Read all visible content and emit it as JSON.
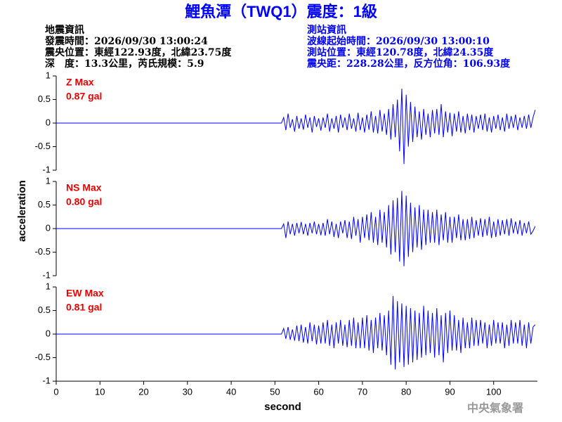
{
  "header": {
    "title": "鯉魚潭（TWQ1）震度：1級",
    "left": [
      "地震資訊",
      "發震時間：2026/09/30 13:00:24",
      "震央位置：東經122.93度，北緯23.75度",
      "深　度：13.3公里，芮氏規模：5.9"
    ],
    "right": [
      "測站資訊",
      "波線起始時間：2026/09/30 13:00:10",
      "測站位置：東經120.78度，北緯24.35度",
      "震央距：228.28公里，反方位角：106.93度"
    ]
  },
  "footer": "中央氣象署",
  "chart_data": [
    {
      "type": "line",
      "annotations": [
        "Z Max",
        "0.87 gal"
      ],
      "xlim": [
        0,
        110
      ],
      "ylim": [
        -1,
        1
      ],
      "yticks": [
        1,
        0.5,
        0,
        -0.5,
        -1
      ],
      "x": [
        0,
        51.5,
        52,
        52.5,
        53,
        53.5,
        54,
        54.5,
        55,
        55.5,
        56,
        56.5,
        57,
        57.5,
        58,
        58.5,
        59,
        59.5,
        60,
        60.5,
        61,
        61.5,
        62,
        62.5,
        63,
        63.5,
        64,
        64.5,
        65,
        65.5,
        66,
        66.5,
        67,
        67.5,
        68,
        68.5,
        69,
        69.5,
        70,
        70.5,
        71,
        71.5,
        72,
        72.5,
        73,
        73.5,
        74,
        74.5,
        75,
        75.5,
        76,
        76.5,
        77,
        77.5,
        78,
        78.5,
        79,
        79.5,
        80,
        80.5,
        81,
        81.5,
        82,
        82.5,
        83,
        83.5,
        84,
        84.5,
        85,
        85.5,
        86,
        86.5,
        87,
        87.5,
        88,
        88.5,
        89,
        89.5,
        90,
        90.5,
        91,
        91.5,
        92,
        92.5,
        93,
        93.5,
        94,
        94.5,
        95,
        95.5,
        96,
        96.5,
        97,
        97.5,
        98,
        98.5,
        99,
        99.5,
        100,
        100.5,
        101,
        101.5,
        102,
        102.5,
        103,
        103.5,
        104,
        104.5,
        105,
        105.5,
        106,
        106.5,
        107,
        107.5,
        108,
        108.5,
        109,
        109.5
      ],
      "series": [
        {
          "color": "#0000ff",
          "values": [
            0,
            0,
            0.12,
            -0.15,
            0.2,
            -0.1,
            0.08,
            -0.18,
            0.15,
            -0.12,
            0.1,
            -0.14,
            0.18,
            -0.1,
            0.12,
            -0.2,
            0.15,
            -0.08,
            0.1,
            -0.16,
            0.12,
            -0.1,
            0.2,
            -0.18,
            0.1,
            -0.12,
            0.15,
            -0.2,
            0.18,
            -0.1,
            0.12,
            -0.15,
            0.2,
            -0.12,
            0.1,
            -0.18,
            0.22,
            -0.15,
            0.12,
            -0.2,
            0.18,
            -0.14,
            0.25,
            -0.2,
            0.15,
            -0.22,
            0.28,
            -0.18,
            0.2,
            -0.25,
            0.3,
            -0.35,
            0.4,
            -0.3,
            0.5,
            -0.6,
            0.73,
            -0.87,
            0.6,
            -0.5,
            0.45,
            -0.4,
            0.35,
            -0.3,
            0.25,
            -0.35,
            0.3,
            -0.25,
            0.2,
            -0.3,
            0.28,
            -0.22,
            0.3,
            -0.25,
            0.4,
            -0.3,
            0.25,
            -0.2,
            0.22,
            -0.28,
            0.2,
            -0.18,
            0.25,
            -0.2,
            0.15,
            -0.22,
            0.2,
            -0.15,
            0.18,
            -0.2,
            0.15,
            -0.12,
            0.18,
            -0.15,
            0.2,
            -0.18,
            0.12,
            -0.2,
            0.15,
            -0.12,
            0.18,
            -0.15,
            0.12,
            -0.18,
            0.2,
            -0.12,
            0.15,
            -0.1,
            0.18,
            -0.15,
            0.12,
            -0.1,
            0.15,
            -0.12,
            0.18,
            -0.1,
            0.12,
            0.28
          ]
        }
      ]
    },
    {
      "type": "line",
      "annotations": [
        "NS Max",
        "0.80 gal"
      ],
      "ylabel": "acceleration",
      "xlim": [
        0,
        110
      ],
      "ylim": [
        -1,
        1
      ],
      "yticks": [
        1,
        0.5,
        0,
        -0.5,
        -1
      ],
      "x": [
        0,
        51.5,
        52,
        52.5,
        53,
        53.5,
        54,
        54.5,
        55,
        55.5,
        56,
        56.5,
        57,
        57.5,
        58,
        58.5,
        59,
        59.5,
        60,
        60.5,
        61,
        61.5,
        62,
        62.5,
        63,
        63.5,
        64,
        64.5,
        65,
        65.5,
        66,
        66.5,
        67,
        67.5,
        68,
        68.5,
        69,
        69.5,
        70,
        70.5,
        71,
        71.5,
        72,
        72.5,
        73,
        73.5,
        74,
        74.5,
        75,
        75.5,
        76,
        76.5,
        77,
        77.5,
        78,
        78.5,
        79,
        79.5,
        80,
        80.5,
        81,
        81.5,
        82,
        82.5,
        83,
        83.5,
        84,
        84.5,
        85,
        85.5,
        86,
        86.5,
        87,
        87.5,
        88,
        88.5,
        89,
        89.5,
        90,
        90.5,
        91,
        91.5,
        92,
        92.5,
        93,
        93.5,
        94,
        94.5,
        95,
        95.5,
        96,
        96.5,
        97,
        97.5,
        98,
        98.5,
        99,
        99.5,
        100,
        100.5,
        101,
        101.5,
        102,
        102.5,
        103,
        103.5,
        104,
        104.5,
        105,
        105.5,
        106,
        106.5,
        107,
        107.5,
        108,
        108.5,
        109,
        109.5
      ],
      "series": [
        {
          "color": "#0000ff",
          "values": [
            0,
            0,
            0.1,
            -0.2,
            0.15,
            -0.12,
            0.1,
            -0.15,
            0.12,
            -0.1,
            0.14,
            -0.12,
            0.1,
            -0.15,
            0.12,
            -0.1,
            0.15,
            -0.12,
            0.1,
            -0.14,
            0.12,
            -0.15,
            0.2,
            -0.12,
            0.15,
            -0.18,
            0.1,
            -0.2,
            0.15,
            -0.1,
            0.18,
            -0.2,
            0.15,
            -0.22,
            0.25,
            -0.15,
            0.2,
            -0.3,
            0.25,
            -0.2,
            0.3,
            -0.25,
            0.35,
            -0.3,
            0.25,
            -0.35,
            0.4,
            -0.3,
            0.35,
            -0.4,
            0.5,
            -0.55,
            0.6,
            -0.5,
            0.65,
            -0.7,
            0.8,
            -0.8,
            0.7,
            -0.6,
            0.55,
            -0.5,
            0.45,
            -0.4,
            0.5,
            -0.45,
            0.4,
            -0.35,
            0.4,
            -0.3,
            0.35,
            -0.3,
            0.4,
            -0.35,
            0.3,
            -0.25,
            0.35,
            -0.3,
            0.25,
            -0.3,
            0.25,
            -0.2,
            0.3,
            -0.25,
            0.2,
            -0.25,
            0.2,
            -0.22,
            0.25,
            -0.2,
            0.18,
            -0.15,
            0.22,
            -0.18,
            0.2,
            -0.15,
            0.25,
            -0.2,
            0.15,
            -0.18,
            0.2,
            -0.15,
            0.18,
            -0.12,
            0.2,
            -0.15,
            0.22,
            -0.1,
            0.15,
            -0.12,
            0.18,
            -0.15,
            0.12,
            -0.1,
            0.15,
            -0.12,
            -0.05,
            0.05
          ]
        }
      ]
    },
    {
      "type": "line",
      "annotations": [
        "EW Max",
        "0.81 gal"
      ],
      "xlabel": "second",
      "xlim": [
        0,
        110
      ],
      "ylim": [
        -1,
        1
      ],
      "yticks": [
        1,
        0.5,
        0,
        -0.5,
        -1
      ],
      "xticks": [
        0,
        10,
        20,
        30,
        40,
        50,
        60,
        70,
        80,
        90,
        100
      ],
      "x": [
        0,
        51.5,
        52,
        52.5,
        53,
        53.5,
        54,
        54.5,
        55,
        55.5,
        56,
        56.5,
        57,
        57.5,
        58,
        58.5,
        59,
        59.5,
        60,
        60.5,
        61,
        61.5,
        62,
        62.5,
        63,
        63.5,
        64,
        64.5,
        65,
        65.5,
        66,
        66.5,
        67,
        67.5,
        68,
        68.5,
        69,
        69.5,
        70,
        70.5,
        71,
        71.5,
        72,
        72.5,
        73,
        73.5,
        74,
        74.5,
        75,
        75.5,
        76,
        76.5,
        77,
        77.5,
        78,
        78.5,
        79,
        79.5,
        80,
        80.5,
        81,
        81.5,
        82,
        82.5,
        83,
        83.5,
        84,
        84.5,
        85,
        85.5,
        86,
        86.5,
        87,
        87.5,
        88,
        88.5,
        89,
        89.5,
        90,
        90.5,
        91,
        91.5,
        92,
        92.5,
        93,
        93.5,
        94,
        94.5,
        95,
        95.5,
        96,
        96.5,
        97,
        97.5,
        98,
        98.5,
        99,
        99.5,
        100,
        100.5,
        101,
        101.5,
        102,
        102.5,
        103,
        103.5,
        104,
        104.5,
        105,
        105.5,
        106,
        106.5,
        107,
        107.5,
        108,
        108.5,
        109,
        109.5
      ],
      "series": [
        {
          "color": "#0000ff",
          "values": [
            0,
            0,
            0.12,
            -0.1,
            0.15,
            -0.12,
            0.1,
            -0.14,
            0.18,
            -0.15,
            0.2,
            -0.18,
            0.15,
            -0.2,
            0.25,
            -0.15,
            0.2,
            -0.22,
            0.18,
            -0.2,
            0.25,
            -0.2,
            0.3,
            -0.25,
            0.2,
            -0.3,
            0.25,
            -0.2,
            0.3,
            -0.25,
            0.2,
            -0.28,
            0.3,
            -0.25,
            0.35,
            -0.3,
            0.25,
            -0.3,
            0.35,
            -0.3,
            0.4,
            -0.35,
            0.3,
            -0.4,
            0.35,
            -0.3,
            0.45,
            -0.35,
            0.4,
            -0.45,
            0.5,
            -0.65,
            0.81,
            -0.75,
            0.7,
            -0.6,
            0.65,
            -0.7,
            0.6,
            -0.65,
            0.55,
            -0.6,
            0.5,
            -0.55,
            0.45,
            -0.5,
            0.6,
            -0.45,
            0.5,
            -0.4,
            0.45,
            -0.5,
            0.55,
            -0.45,
            0.4,
            -0.6,
            0.45,
            -0.4,
            0.5,
            -0.35,
            0.4,
            -0.35,
            0.3,
            -0.4,
            0.35,
            -0.3,
            0.25,
            -0.3,
            0.35,
            -0.25,
            0.3,
            -0.25,
            0.3,
            -0.2,
            0.25,
            -0.3,
            0.2,
            -0.25,
            0.3,
            -0.2,
            0.25,
            -0.2,
            0.25,
            -0.3,
            0.2,
            -0.25,
            0.3,
            -0.2,
            0.25,
            -0.2,
            0.3,
            -0.25,
            0.2,
            -0.3,
            0.25,
            -0.2,
            0.15,
            0.2
          ]
        }
      ]
    }
  ]
}
